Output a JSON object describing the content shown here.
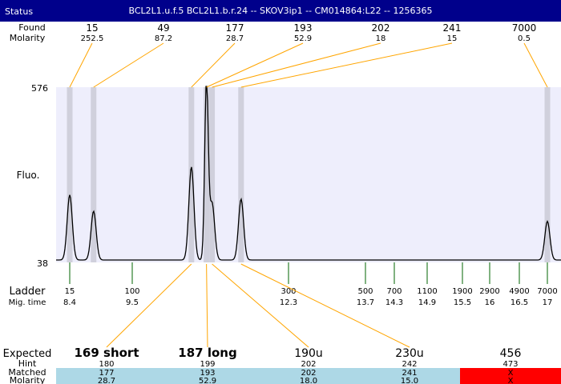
{
  "title": "BCL2L1.u.f.5  BCL2L1.b.r.24 -- SKOV3ip1 -- CM014864:L22 -- 1256365",
  "labels": {
    "status": "Status",
    "found": "Found",
    "molarity": "Molarity",
    "fluo": "Fluo.",
    "ladder": "Ladder",
    "mig_time": "Mig. time",
    "expected": "Expected",
    "hint": "Hint",
    "matched": "Matched",
    "molarity_bottom": "Molarity"
  },
  "colors": {
    "title_bg": "#00008b",
    "plot_bg": "#eeeefc",
    "band": "#d0d0dc",
    "connector": "#ffa500",
    "ladder_tick": "#006400",
    "matched_bg": "#add8e6",
    "unmatched_bg": "#ff0000"
  },
  "chart_data": {
    "type": "line",
    "ylabel": "Fluo.",
    "ylim": [
      38,
      576
    ],
    "y_ticks": [
      "576",
      "38"
    ],
    "ladder": [
      {
        "size": "15",
        "mig_time": "8.4"
      },
      {
        "size": "100",
        "mig_time": "9.5"
      },
      {
        "size": "300",
        "mig_time": "12.3"
      },
      {
        "size": "500",
        "mig_time": "13.7"
      },
      {
        "size": "700",
        "mig_time": "14.3"
      },
      {
        "size": "1100",
        "mig_time": "14.9"
      },
      {
        "size": "1900",
        "mig_time": "15.5"
      },
      {
        "size": "2900",
        "mig_time": "16"
      },
      {
        "size": "4900",
        "mig_time": "16.5"
      },
      {
        "size": "7000",
        "mig_time": "17"
      }
    ],
    "found_peaks": [
      {
        "size": "15",
        "molarity": "252.5",
        "mig_time": 8.4,
        "fluo": 230
      },
      {
        "size": "49",
        "molarity": "87.2",
        "mig_time": 8.82,
        "fluo": 180
      },
      {
        "size": "177",
        "molarity": "28.7",
        "mig_time": 10.56,
        "fluo": 316
      },
      {
        "size": "193",
        "molarity": "52.9",
        "mig_time": 10.83,
        "fluo": 576
      },
      {
        "size": "202",
        "molarity": "18",
        "mig_time": 10.93,
        "fluo": 205
      },
      {
        "size": "241",
        "molarity": "15",
        "mig_time": 11.45,
        "fluo": 217
      },
      {
        "size": "7000",
        "molarity": "0.5",
        "mig_time": 17,
        "fluo": 149
      }
    ],
    "expected": [
      {
        "label": "169 short",
        "hint": "180",
        "matched": "177",
        "molarity": "28.7",
        "status": "matched",
        "peak": 2
      },
      {
        "label": "187 long",
        "hint": "199",
        "matched": "193",
        "molarity": "52.9",
        "status": "matched",
        "peak": 3
      },
      {
        "label": "190u",
        "hint": "202",
        "matched": "202",
        "molarity": "18.0",
        "status": "matched",
        "peak": 4
      },
      {
        "label": "230u",
        "hint": "242",
        "matched": "241",
        "molarity": "15.0",
        "status": "matched",
        "peak": 5
      },
      {
        "label": "456",
        "hint": "473",
        "matched": "X",
        "molarity": "X",
        "status": "unmatched",
        "peak": null
      }
    ]
  }
}
